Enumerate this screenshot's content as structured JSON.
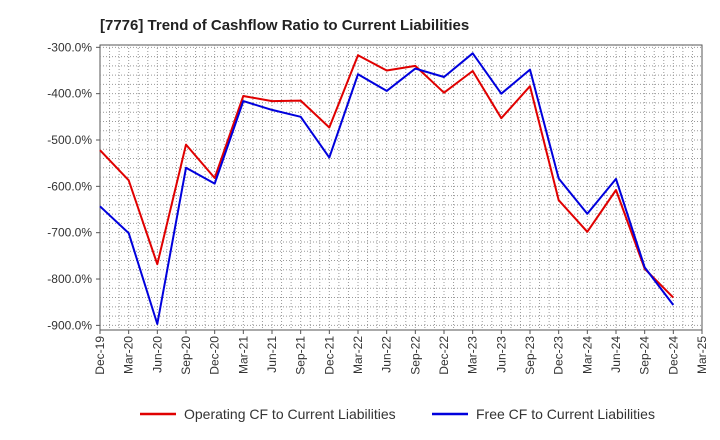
{
  "chart_data": {
    "type": "line",
    "title": "[7776]  Trend of Cashflow Ratio to Current Liabilities",
    "xlabel": "",
    "ylabel": "",
    "ylim": [
      -910,
      -295
    ],
    "y_ticks": [
      -300,
      -400,
      -500,
      -600,
      -700,
      -800,
      -900
    ],
    "y_tick_labels": [
      "-300.0%",
      "-400.0%",
      "-500.0%",
      "-600.0%",
      "-700.0%",
      "-800.0%",
      "-900.0%"
    ],
    "categories": [
      "Dec-19",
      "Mar-20",
      "Jun-20",
      "Sep-20",
      "Dec-20",
      "Mar-21",
      "Jun-21",
      "Sep-21",
      "Dec-21",
      "Mar-22",
      "Jun-22",
      "Sep-22",
      "Dec-22",
      "Mar-23",
      "Jun-23",
      "Sep-23",
      "Dec-23",
      "Mar-24",
      "Jun-24",
      "Sep-24",
      "Dec-24",
      "Mar-25"
    ],
    "grid": true,
    "legend_position": "bottom",
    "series": [
      {
        "name": "Operating CF to Current Liabilities",
        "color": "#e00000",
        "values": [
          -522,
          -587,
          -768,
          -510,
          -582,
          -405,
          -416,
          -415,
          -473,
          -317,
          -350,
          -340,
          -398,
          -351,
          -453,
          -384,
          -630,
          -698,
          -608,
          -778,
          -840,
          null
        ]
      },
      {
        "name": "Free CF to Current Liabilities",
        "color": "#0000dd",
        "values": [
          -643,
          -701,
          -897,
          -560,
          -594,
          -416,
          -435,
          -450,
          -538,
          -358,
          -394,
          -346,
          -364,
          -313,
          -400,
          -348,
          -583,
          -659,
          -584,
          -775,
          -856,
          null
        ]
      }
    ]
  }
}
